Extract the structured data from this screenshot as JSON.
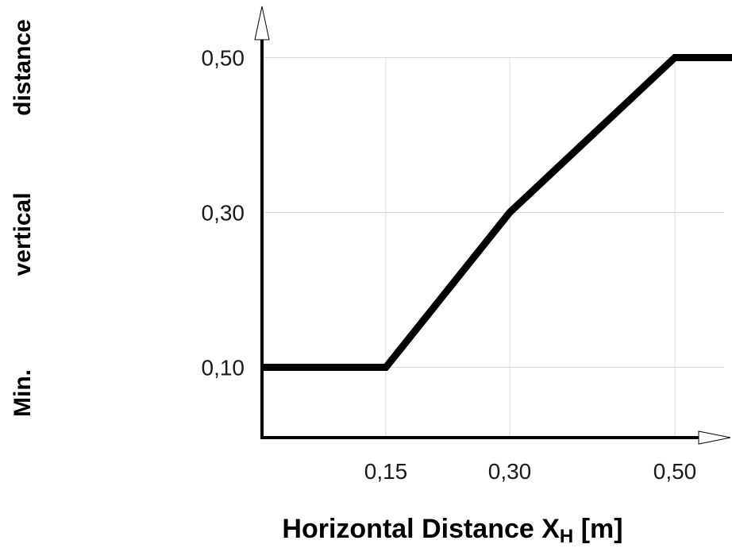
{
  "chart_data": {
    "type": "line",
    "title": "",
    "xlabel": "Horizontal Distance X",
    "xlabel_subscript": "H",
    "xlabel_unit": "[m]",
    "ylabel_words": [
      "Min.",
      "vertical",
      "distance"
    ],
    "x_ticks": [
      {
        "value": 0.15,
        "label": "0,15"
      },
      {
        "value": 0.3,
        "label": "0,30"
      },
      {
        "value": 0.5,
        "label": "0,50"
      }
    ],
    "y_ticks": [
      {
        "value": 0.1,
        "label": "0,10"
      },
      {
        "value": 0.3,
        "label": "0,30"
      },
      {
        "value": 0.5,
        "label": "0,50"
      }
    ],
    "series": [
      {
        "points": [
          {
            "x": 0.0,
            "y": 0.1
          },
          {
            "x": 0.15,
            "y": 0.1
          },
          {
            "x": 0.3,
            "y": 0.3
          },
          {
            "x": 0.5,
            "y": 0.5
          },
          {
            "x": 0.6,
            "y": 0.5
          }
        ]
      }
    ],
    "grid": true,
    "line_color": "#000000",
    "grid_color": "#d9d9d9"
  }
}
